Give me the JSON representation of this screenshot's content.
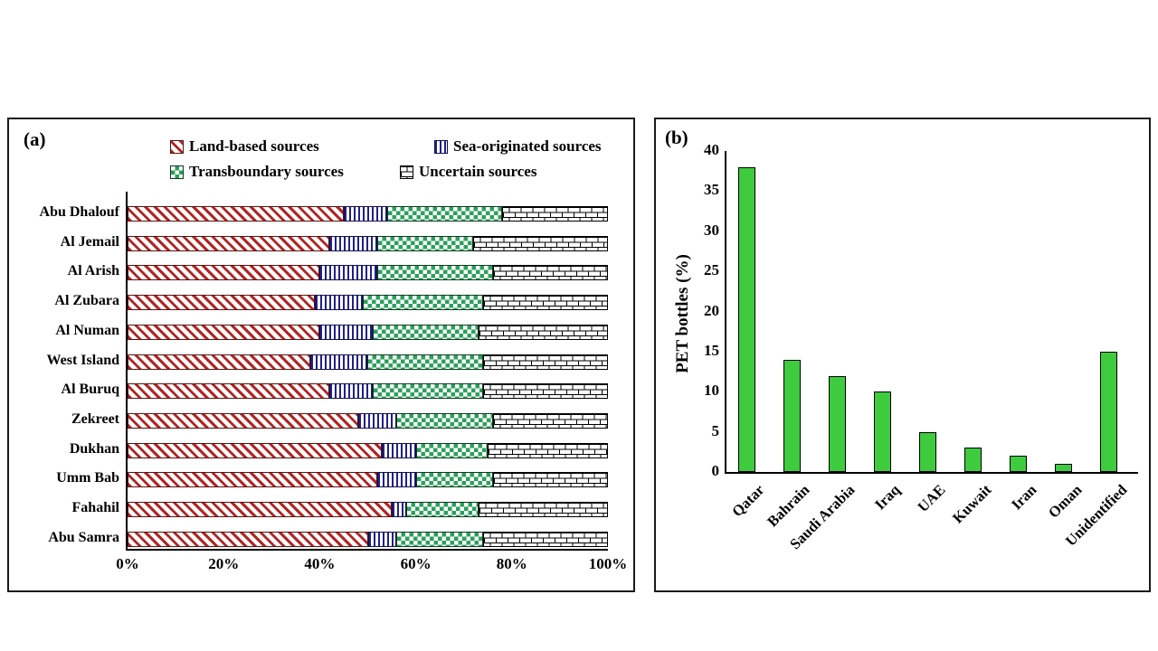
{
  "page": {
    "background": "#ffffff"
  },
  "panels": {
    "a": {
      "tag": "(a)",
      "legend": [
        {
          "key": "land",
          "label": "Land-based sources",
          "pattern": "red-diagonal-hatch"
        },
        {
          "key": "sea",
          "label": "Sea-originated sources",
          "pattern": "blue-vertical-stripes"
        },
        {
          "key": "trans",
          "label": "Transboundary sources",
          "pattern": "green-checkerboard"
        },
        {
          "key": "uncertain",
          "label": "Uncertain sources",
          "pattern": "white-brick"
        }
      ]
    },
    "b": {
      "tag": "(b)",
      "ylabel": "PET bottles (%)"
    }
  },
  "colors": {
    "land_hatch_red": "#b22524",
    "sea_stripe_navy": "#20208a",
    "trans_checker_green": "#2ba05a",
    "pet_bar_green": "#3ecc3e",
    "axis_black": "#000000"
  },
  "chart_data": [
    {
      "type": "bar",
      "orientation": "horizontal",
      "stacked": true,
      "title": "",
      "xlabel": "",
      "ylabel": "",
      "xlim": [
        0,
        100
      ],
      "x_ticks": [
        "0%",
        "20%",
        "40%",
        "60%",
        "80%",
        "100%"
      ],
      "grid": false,
      "legend_position": "top",
      "categories": [
        "Abu Dhalouf",
        "Al Jemail",
        "Al Arish",
        "Al Zubara",
        "Al Numan",
        "West Island",
        "Al Buruq",
        "Zekreet",
        "Dukhan",
        "Umm Bab",
        "Fahahil",
        "Abu Samra"
      ],
      "series": [
        {
          "name": "Land-based sources",
          "pattern": "red-diagonal-hatch",
          "values": [
            45,
            42,
            40,
            39,
            40,
            38,
            42,
            48,
            53,
            52,
            55,
            50
          ]
        },
        {
          "name": "Sea-originated sources",
          "pattern": "blue-vertical-stripes",
          "values": [
            9,
            10,
            12,
            10,
            11,
            12,
            9,
            8,
            7,
            8,
            3,
            6
          ]
        },
        {
          "name": "Transboundary sources",
          "pattern": "green-checkerboard",
          "values": [
            24,
            20,
            24,
            25,
            22,
            24,
            23,
            20,
            15,
            16,
            15,
            18
          ]
        },
        {
          "name": "Uncertain sources",
          "pattern": "white-brick",
          "values": [
            22,
            28,
            24,
            26,
            27,
            26,
            26,
            24,
            25,
            24,
            27,
            26
          ]
        }
      ]
    },
    {
      "type": "bar",
      "orientation": "vertical",
      "title": "",
      "xlabel": "",
      "ylabel": "PET bottles (%)",
      "ylim": [
        0,
        40
      ],
      "y_ticks": [
        0,
        5,
        10,
        15,
        20,
        25,
        30,
        35,
        40
      ],
      "grid": false,
      "bar_color": "#3ecc3e",
      "categories": [
        "Qatar",
        "Bahrain",
        "Saudi Arabia",
        "Iraq",
        "UAE",
        "Kuwait",
        "Iran",
        "Oman",
        "Unidentified"
      ],
      "values": [
        38,
        14,
        12,
        10,
        5,
        3,
        2,
        1,
        15
      ]
    }
  ]
}
